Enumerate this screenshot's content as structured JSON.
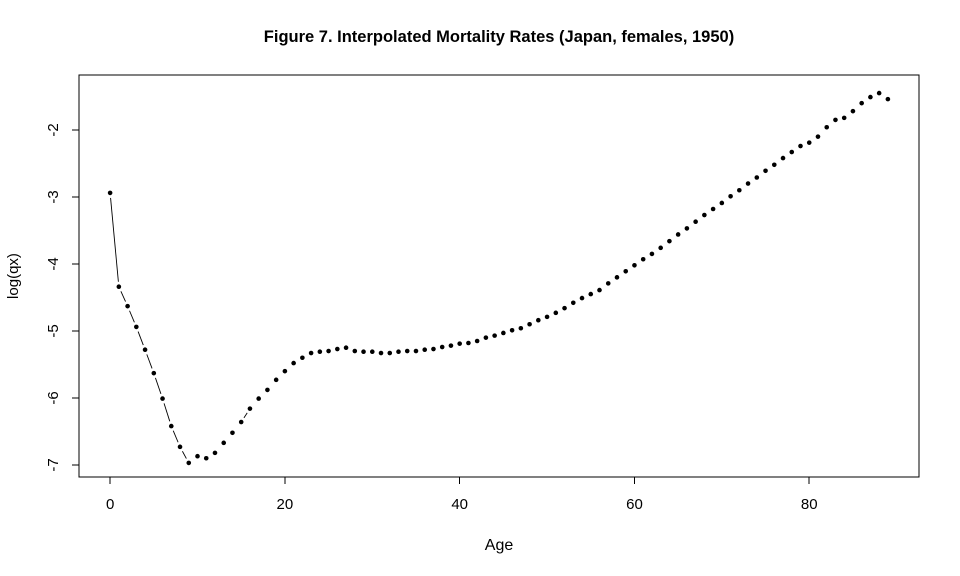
{
  "chart_data": {
    "type": "scatter",
    "title": "Figure 7. Interpolated Mortality Rates (Japan, females, 1950)",
    "xlabel": "Age",
    "ylabel": "log(qx)",
    "x_ticks": [
      0,
      20,
      40,
      60,
      80
    ],
    "y_ticks": [
      -2,
      -3,
      -4,
      -5,
      -6,
      -7
    ],
    "xlim": [
      -3.56,
      92.56
    ],
    "ylim": [
      -7.18,
      -1.18
    ],
    "grid": false,
    "legend": "none",
    "background_color": "#ffffff",
    "point_color": "#000000",
    "line_color": "#000000",
    "marker": "filled-circle",
    "series": [
      {
        "name": "log_qx_by_age",
        "x": [
          0,
          1,
          2,
          3,
          4,
          5,
          6,
          7,
          8,
          9,
          10,
          11,
          12,
          13,
          14,
          15,
          16,
          17,
          18,
          19,
          20,
          21,
          22,
          23,
          24,
          25,
          26,
          27,
          28,
          29,
          30,
          31,
          32,
          33,
          34,
          35,
          36,
          37,
          38,
          39,
          40,
          41,
          42,
          43,
          44,
          45,
          46,
          47,
          48,
          49,
          50,
          51,
          52,
          53,
          54,
          55,
          56,
          57,
          58,
          59,
          60,
          61,
          62,
          63,
          64,
          65,
          66,
          67,
          68,
          69,
          70,
          71,
          72,
          73,
          74,
          75,
          76,
          77,
          78,
          79,
          80,
          81,
          82,
          83,
          84,
          85,
          86,
          87,
          88,
          89
        ],
        "y": [
          -2.94,
          -4.34,
          -4.63,
          -4.94,
          -5.28,
          -5.63,
          -6.01,
          -6.42,
          -6.73,
          -6.97,
          -6.87,
          -6.9,
          -6.82,
          -6.67,
          -6.52,
          -6.36,
          -6.16,
          -6.01,
          -5.88,
          -5.73,
          -5.6,
          -5.48,
          -5.4,
          -5.33,
          -5.31,
          -5.3,
          -5.27,
          -5.25,
          -5.3,
          -5.31,
          -5.31,
          -5.33,
          -5.33,
          -5.31,
          -5.3,
          -5.3,
          -5.28,
          -5.27,
          -5.24,
          -5.22,
          -5.19,
          -5.18,
          -5.15,
          -5.1,
          -5.07,
          -5.03,
          -4.99,
          -4.96,
          -4.9,
          -4.84,
          -4.79,
          -4.73,
          -4.66,
          -4.58,
          -4.51,
          -4.45,
          -4.39,
          -4.29,
          -4.2,
          -4.11,
          -4.02,
          -3.93,
          -3.85,
          -3.76,
          -3.66,
          -3.56,
          -3.47,
          -3.37,
          -3.27,
          -3.18,
          -3.09,
          -2.99,
          -2.9,
          -2.8,
          -2.71,
          -2.61,
          -2.52,
          -2.42,
          -2.33,
          -2.24,
          -2.19,
          -2.1,
          -1.96,
          -1.85,
          -1.82,
          -1.72,
          -1.6,
          -1.51,
          -1.45,
          -1.54
        ]
      }
    ]
  }
}
